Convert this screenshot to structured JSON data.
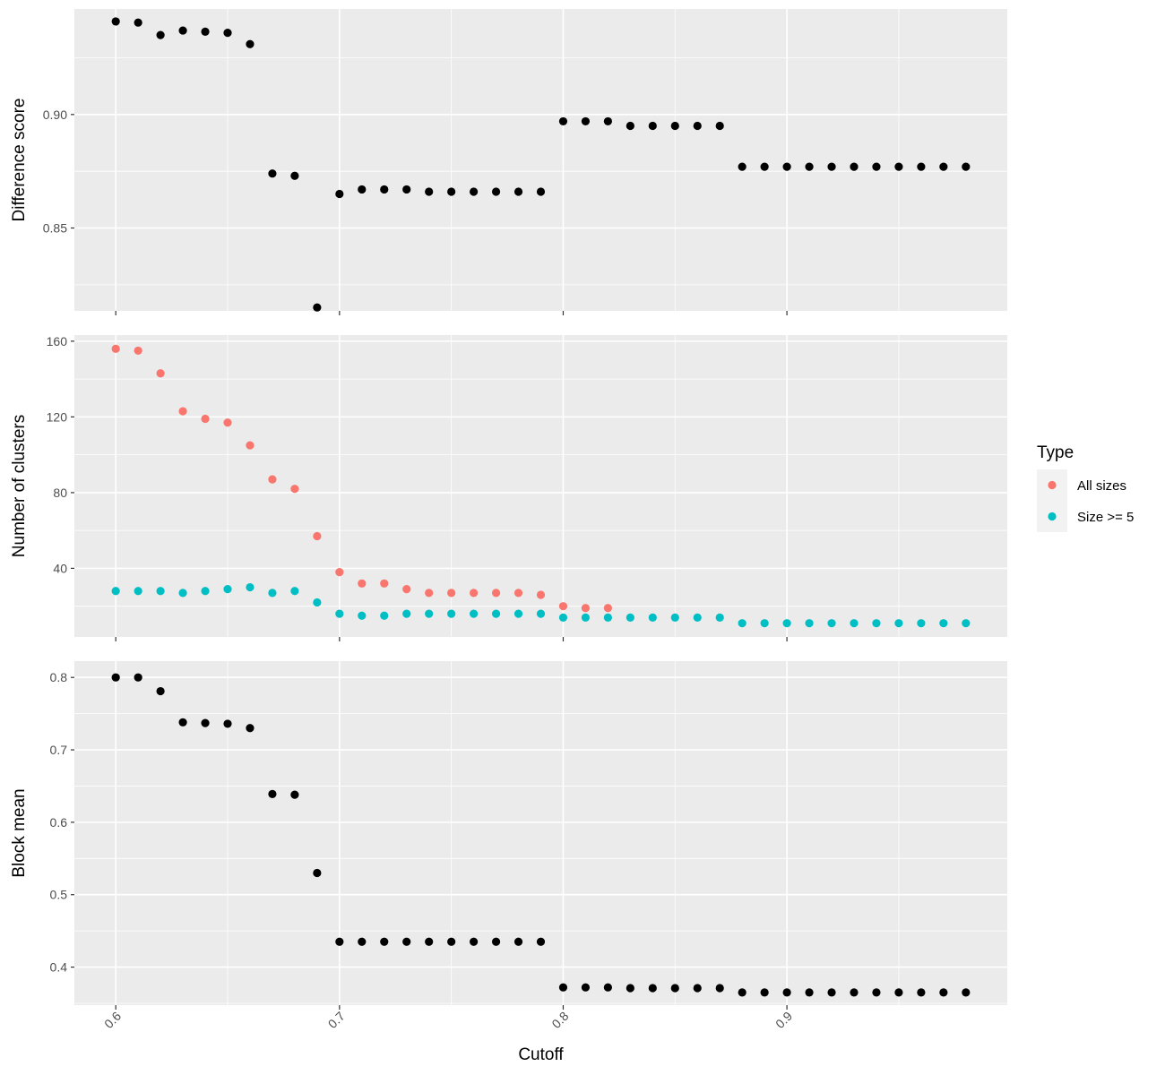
{
  "chart_data": [
    {
      "type": "scatter",
      "ylabel": "Difference score",
      "xlabel": "",
      "xlim": [
        0.5815,
        0.9985
      ],
      "ylim": [
        0.8135,
        0.9465
      ],
      "x_ticks": [
        "0.6",
        "0.7",
        "0.8",
        "0.9"
      ],
      "y_ticks": [
        "0.85",
        "0.90"
      ],
      "grid": true,
      "series": [
        {
          "color": "#000000",
          "x": [
            0.6,
            0.61,
            0.62,
            0.63,
            0.64,
            0.65,
            0.66,
            0.67,
            0.68,
            0.69,
            0.7,
            0.71,
            0.72,
            0.73,
            0.74,
            0.75,
            0.76,
            0.77,
            0.78,
            0.79,
            0.8,
            0.81,
            0.82,
            0.83,
            0.84,
            0.85,
            0.86,
            0.87,
            0.88,
            0.89,
            0.9,
            0.91,
            0.92,
            0.93,
            0.94,
            0.95,
            0.96,
            0.97,
            0.98
          ],
          "y": [
            0.941,
            0.9405,
            0.935,
            0.937,
            0.9365,
            0.936,
            0.931,
            0.874,
            0.873,
            0.815,
            0.865,
            0.867,
            0.867,
            0.867,
            0.866,
            0.866,
            0.866,
            0.866,
            0.866,
            0.866,
            0.897,
            0.897,
            0.897,
            0.895,
            0.895,
            0.895,
            0.895,
            0.895,
            0.877,
            0.877,
            0.877,
            0.877,
            0.877,
            0.877,
            0.877,
            0.877,
            0.877,
            0.877,
            0.877
          ]
        }
      ]
    },
    {
      "type": "scatter",
      "ylabel": "Number of clusters",
      "xlabel": "",
      "xlim": [
        0.5815,
        0.9985
      ],
      "ylim": [
        3.75,
        163.25
      ],
      "x_ticks": [
        "0.6",
        "0.7",
        "0.8",
        "0.9"
      ],
      "y_ticks": [
        "40",
        "80",
        "120",
        "160"
      ],
      "grid": true,
      "legend": {
        "title": "Type",
        "position": "right"
      },
      "series": [
        {
          "name": "All sizes",
          "color": "#F8766D",
          "x": [
            0.6,
            0.61,
            0.62,
            0.63,
            0.64,
            0.65,
            0.66,
            0.67,
            0.68,
            0.69,
            0.7,
            0.71,
            0.72,
            0.73,
            0.74,
            0.75,
            0.76,
            0.77,
            0.78,
            0.79,
            0.8,
            0.81,
            0.82
          ],
          "y": [
            156,
            155,
            143,
            123,
            119,
            117,
            105,
            87,
            82,
            57,
            38,
            32,
            32,
            29,
            27,
            27,
            27,
            27,
            27,
            26,
            20,
            19,
            19
          ]
        },
        {
          "name": "Size >= 5",
          "color": "#00BFC4",
          "x": [
            0.6,
            0.61,
            0.62,
            0.63,
            0.64,
            0.65,
            0.66,
            0.67,
            0.68,
            0.69,
            0.7,
            0.71,
            0.72,
            0.73,
            0.74,
            0.75,
            0.76,
            0.77,
            0.78,
            0.79,
            0.8,
            0.81,
            0.82,
            0.83,
            0.84,
            0.85,
            0.86,
            0.87,
            0.88,
            0.89,
            0.9,
            0.91,
            0.92,
            0.93,
            0.94,
            0.95,
            0.96,
            0.97,
            0.98
          ],
          "y": [
            28,
            28,
            28,
            27,
            28,
            29,
            30,
            27,
            28,
            22,
            16,
            15,
            15,
            16,
            16,
            16,
            16,
            16,
            16,
            16,
            14,
            14,
            14,
            14,
            14,
            14,
            14,
            14,
            11,
            11,
            11,
            11,
            11,
            11,
            11,
            11,
            11,
            11,
            11
          ]
        }
      ]
    },
    {
      "type": "scatter",
      "ylabel": "Block mean",
      "xlabel": "Cutoff",
      "xlim": [
        0.5815,
        0.9985
      ],
      "ylim": [
        0.3475,
        0.8225
      ],
      "x_ticks": [
        "0.6",
        "0.7",
        "0.8",
        "0.9"
      ],
      "y_ticks": [
        "0.4",
        "0.5",
        "0.6",
        "0.7",
        "0.8"
      ],
      "grid": true,
      "series": [
        {
          "color": "#000000",
          "x": [
            0.6,
            0.61,
            0.62,
            0.63,
            0.64,
            0.65,
            0.66,
            0.67,
            0.68,
            0.69,
            0.7,
            0.71,
            0.72,
            0.73,
            0.74,
            0.75,
            0.76,
            0.77,
            0.78,
            0.79,
            0.8,
            0.81,
            0.82,
            0.83,
            0.84,
            0.85,
            0.86,
            0.87,
            0.88,
            0.89,
            0.9,
            0.91,
            0.92,
            0.93,
            0.94,
            0.95,
            0.96,
            0.97,
            0.98
          ],
          "y": [
            0.8,
            0.8,
            0.781,
            0.738,
            0.737,
            0.736,
            0.73,
            0.639,
            0.638,
            0.53,
            0.435,
            0.435,
            0.435,
            0.435,
            0.435,
            0.435,
            0.435,
            0.435,
            0.435,
            0.435,
            0.372,
            0.372,
            0.372,
            0.371,
            0.371,
            0.371,
            0.371,
            0.371,
            0.365,
            0.365,
            0.365,
            0.365,
            0.365,
            0.365,
            0.365,
            0.365,
            0.365,
            0.365,
            0.365
          ]
        }
      ]
    }
  ]
}
